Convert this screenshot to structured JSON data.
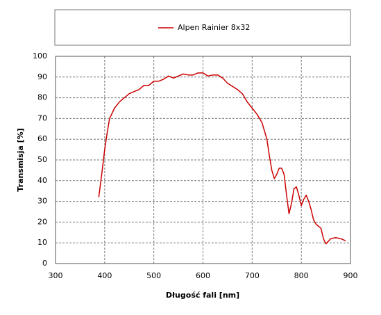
{
  "chart_data": {
    "type": "line",
    "xlabel": "Długość fali [nm]",
    "ylabel": "Transmisja [%]",
    "x": [
      388,
      395,
      400,
      405,
      410,
      420,
      430,
      440,
      450,
      460,
      470,
      480,
      490,
      500,
      510,
      520,
      530,
      540,
      550,
      560,
      570,
      580,
      590,
      600,
      610,
      620,
      630,
      640,
      650,
      660,
      670,
      680,
      690,
      700,
      710,
      720,
      730,
      735,
      740,
      745,
      750,
      755,
      760,
      765,
      770,
      775,
      780,
      785,
      790,
      795,
      800,
      805,
      810,
      815,
      820,
      825,
      830,
      840,
      845,
      850,
      860,
      870,
      880,
      890
    ],
    "series": [
      {
        "name": "Alpen Rainier 8x32",
        "color": "#cc0000",
        "values": [
          32,
          45,
          55,
          63,
          70,
          75,
          78,
          80,
          82,
          83,
          84,
          86,
          86,
          88,
          88,
          89,
          90.5,
          89.5,
          90.5,
          91.5,
          91,
          91,
          92,
          92,
          90.5,
          91,
          91,
          89.5,
          87,
          85.5,
          84,
          82,
          78,
          75,
          72,
          68,
          60,
          52,
          45,
          41,
          43,
          46,
          46,
          43,
          33,
          24,
          29,
          36,
          37,
          33,
          28,
          31,
          33,
          30,
          26,
          21,
          19,
          17,
          12,
          9.5,
          12,
          12.5,
          12,
          11
        ]
      }
    ],
    "xlim": [
      300,
      900
    ],
    "xticks": [
      300,
      400,
      500,
      600,
      700,
      800,
      900
    ],
    "ylim": [
      0,
      100
    ],
    "yticks": [
      0,
      10,
      20,
      30,
      40,
      50,
      60,
      70,
      80,
      90,
      100
    ],
    "grid": true
  }
}
